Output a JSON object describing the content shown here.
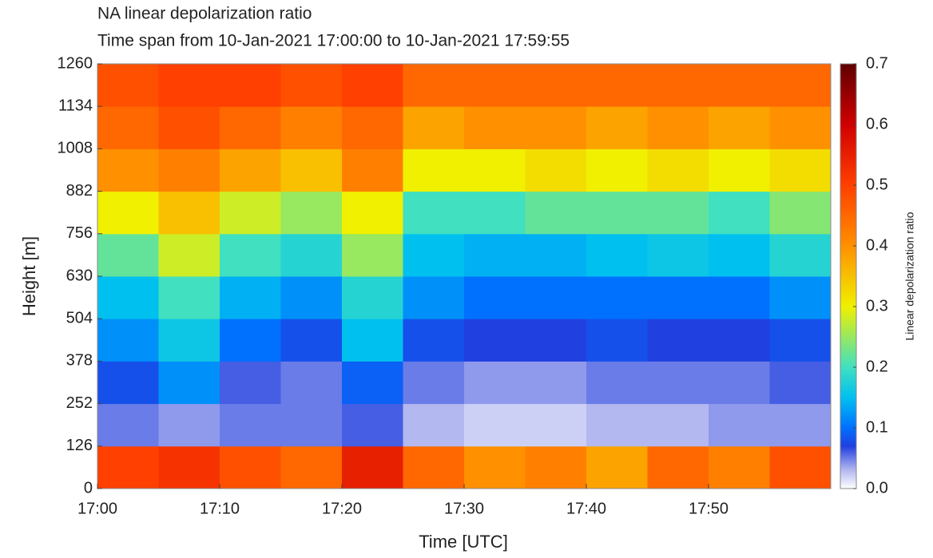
{
  "chart_data": {
    "type": "heatmap",
    "title": "NA linear depolarization ratio",
    "subtitle": "Time span from 10-Jan-2021 17:00:00 to 10-Jan-2021 17:59:55",
    "xlabel": "Time [UTC]",
    "ylabel": "Height [m]",
    "colorbar_label": "Linear depolarization ratio",
    "xlim": [
      0,
      60
    ],
    "xticks": [
      {
        "value": 0,
        "label": "17:00"
      },
      {
        "value": 10,
        "label": "17:10"
      },
      {
        "value": 20,
        "label": "17:20"
      },
      {
        "value": 30,
        "label": "17:30"
      },
      {
        "value": 40,
        "label": "17:40"
      },
      {
        "value": 50,
        "label": "17:50"
      }
    ],
    "x_bins": [
      0,
      5,
      10,
      15,
      20,
      25,
      30,
      35,
      40,
      45,
      50,
      55,
      60
    ],
    "ylim": [
      0,
      1260
    ],
    "yticks": [
      0,
      126,
      252,
      378,
      504,
      630,
      756,
      882,
      1008,
      1134,
      1260
    ],
    "y_bins": [
      0,
      126,
      252,
      378,
      504,
      630,
      756,
      882,
      1008,
      1134,
      1260
    ],
    "clim": [
      0,
      0.7
    ],
    "cticks": [
      {
        "value": 0,
        "label": "0.0"
      },
      0.1,
      0.2,
      0.3,
      0.4,
      0.5,
      0.6,
      0.7
    ],
    "colorscale": [
      {
        "value": 0,
        "color": "#ffffff"
      },
      {
        "value": 0.03,
        "color": "#b4b8f0"
      },
      {
        "value": 0.07,
        "color": "#2040e0"
      },
      {
        "value": 0.1,
        "color": "#0070ff"
      },
      {
        "value": 0.15,
        "color": "#00c0f0"
      },
      {
        "value": 0.2,
        "color": "#40e0c0"
      },
      {
        "value": 0.3,
        "color": "#f0f000"
      },
      {
        "value": 0.4,
        "color": "#ff9000"
      },
      {
        "value": 0.5,
        "color": "#ff4000"
      },
      {
        "value": 0.6,
        "color": "#d00000"
      },
      {
        "value": 0.7,
        "color": "#600000"
      }
    ],
    "values": [
      [
        0.5,
        0.52,
        0.48,
        0.45,
        0.55,
        0.45,
        0.4,
        0.42,
        0.38,
        0.45,
        0.42,
        0.48
      ],
      [
        0.05,
        0.04,
        0.05,
        0.05,
        0.06,
        0.03,
        0.02,
        0.02,
        0.03,
        0.03,
        0.04,
        0.04
      ],
      [
        0.08,
        0.12,
        0.06,
        0.05,
        0.09,
        0.05,
        0.04,
        0.04,
        0.05,
        0.05,
        0.05,
        0.06
      ],
      [
        0.12,
        0.16,
        0.1,
        0.08,
        0.15,
        0.08,
        0.07,
        0.07,
        0.08,
        0.07,
        0.07,
        0.08
      ],
      [
        0.15,
        0.2,
        0.14,
        0.12,
        0.18,
        0.12,
        0.1,
        0.1,
        0.1,
        0.1,
        0.1,
        0.12
      ],
      [
        0.22,
        0.28,
        0.2,
        0.18,
        0.25,
        0.15,
        0.14,
        0.14,
        0.15,
        0.16,
        0.15,
        0.18
      ],
      [
        0.3,
        0.35,
        0.28,
        0.25,
        0.3,
        0.2,
        0.2,
        0.22,
        0.22,
        0.22,
        0.2,
        0.24
      ],
      [
        0.4,
        0.42,
        0.38,
        0.35,
        0.42,
        0.3,
        0.3,
        0.32,
        0.3,
        0.32,
        0.3,
        0.32
      ],
      [
        0.45,
        0.48,
        0.45,
        0.42,
        0.45,
        0.38,
        0.4,
        0.4,
        0.38,
        0.4,
        0.38,
        0.4
      ],
      [
        0.48,
        0.5,
        0.5,
        0.48,
        0.5,
        0.45,
        0.45,
        0.45,
        0.45,
        0.45,
        0.45,
        0.45
      ]
    ]
  }
}
